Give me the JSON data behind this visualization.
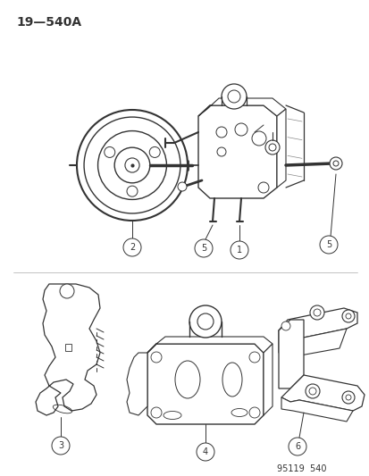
{
  "background_color": "#ffffff",
  "title_label": "19—540A",
  "part_number_label": "95119  540",
  "line_color": "#333333",
  "fill_color": "#ffffff"
}
